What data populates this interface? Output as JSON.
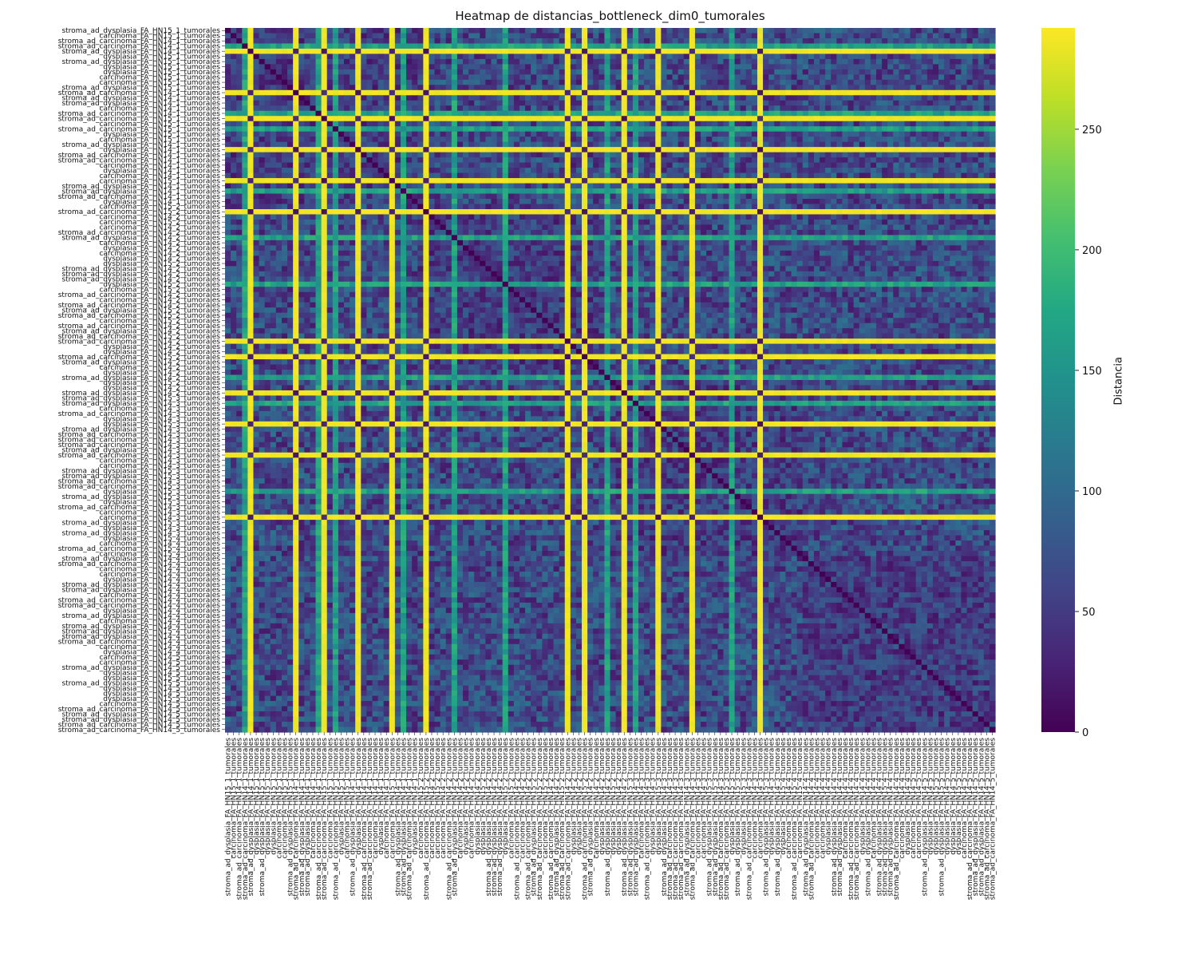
{
  "chart_data": {
    "type": "heatmap",
    "title": "Heatmap de distancias_bottleneck_dim0_tumorales",
    "colorbar": {
      "label": "Distancia",
      "range": [
        0,
        292
      ],
      "ticks": [
        0,
        50,
        100,
        150,
        200,
        250
      ],
      "colormap": "viridis"
    },
    "labels": [
      "stroma_ad_dysplasia_FA_HN15_1_tumorales",
      "carcinoma_FA_HN15_1_tumorales",
      "stroma_ad_carcinoma_FA_HN14_1_tumorales",
      "stroma_ad_carcinoma_FA_HN14_1_tumorales",
      "stroma_ad_dysplasia_FA_HN14_1_tumorales",
      "dysplasia_FA_HN15_1_tumorales",
      "stroma_ad_dysplasia_FA_HN15_1_tumorales",
      "dysplasia_FA_HN15_1_tumorales",
      "dysplasia_FA_HN15_1_tumorales",
      "carcinoma_FA_HN15_1_tumorales",
      "carcinoma_FA_HN15_1_tumorales",
      "stroma_ad_dysplasia_FA_HN15_1_tumorales",
      "stroma_ad_carcinoma_FA_HN14_1_tumorales",
      "stroma_ad_dysplasia_FA_HN14_1_tumorales",
      "stroma_ad_dysplasia_FA_HN14_1_tumorales",
      "carcinoma_FA_HN14_1_tumorales",
      "stroma_ad_carcinoma_FA_HN14_1_tumorales",
      "stroma_ad_carcinoma_FA_HN15_1_tumorales",
      "carcinoma_FA_HN15_1_tumorales",
      "stroma_ad_carcinoma_FA_HN15_1_tumorales",
      "dysplasia_FA_HN15_1_tumorales",
      "carcinoma_FA_HN15_1_tumorales",
      "stroma_ad_dysplasia_FA_HN14_1_tumorales",
      "dysplasia_FA_HN14_1_tumorales",
      "stroma_ad_carcinoma_FA_HN14_1_tumorales",
      "stroma_ad_carcinoma_FA_HN14_1_tumorales",
      "carcinoma_FA_HN14_1_tumorales",
      "dysplasia_FA_HN14_1_tumorales",
      "carcinoma_FA_HN14_1_tumorales",
      "carcinoma_FA_HN15_1_tumorales",
      "stroma_ad_dysplasia_FA_HN14_1_tumorales",
      "stroma_ad_dysplasia_FA_HN14_1_tumorales",
      "stroma_ad_carcinoma_FA_HN14_1_tumorales",
      "dysplasia_FA_HN14_1_tumorales",
      "carcinoma_FA_HN15_2_tumorales",
      "stroma_ad_carcinoma_FA_HN15_2_tumorales",
      "carcinoma_FA_HN14_2_tumorales",
      "carcinoma_FA_HN15_2_tumorales",
      "carcinoma_FA_HN14_2_tumorales",
      "stroma_ad_carcinoma_FA_HN14_2_tumorales",
      "stroma_ad_dysplasia_FA_HN14_2_tumorales",
      "carcinoma_FA_HN14_2_tumorales",
      "dysplasia_FA_HN14_2_tumorales",
      "carcinoma_FA_HN14_2_tumorales",
      "dysplasia_FA_HN14_2_tumorales",
      "dysplasia_FA_HN15_2_tumorales",
      "stroma_ad_dysplasia_FA_HN14_2_tumorales",
      "stroma_ad_dysplasia_FA_HN14_2_tumorales",
      "stroma_ad_dysplasia_FA_HN14_2_tumorales",
      "dysplasia_FA_HN15_2_tumorales",
      "carcinoma_FA_HN15_2_tumorales",
      "stroma_ad_carcinoma_FA_HN14_2_tumorales",
      "carcinoma_FA_HN14_2_tumorales",
      "stroma_ad_carcinoma_FA_HN14_2_tumorales",
      "stroma_ad_dysplasia_FA_HN15_2_tumorales",
      "stroma_ad_carcinoma_FA_HN15_2_tumorales",
      "carcinoma_FA_HN15_2_tumorales",
      "stroma_ad_carcinoma_FA_HN14_2_tumorales",
      "stroma_ad_dysplasia_FA_HN14_2_tumorales",
      "stroma_ad_carcinoma_FA_HN15_2_tumorales",
      "stroma_ad_carcinoma_FA_HN14_2_tumorales",
      "dysplasia_FA_HN14_2_tumorales",
      "dysplasia_FA_HN14_2_tumorales",
      "stroma_ad_carcinoma_FA_HN15_2_tumorales",
      "stroma_ad_dysplasia_FA_HN14_2_tumorales",
      "carcinoma_FA_HN14_2_tumorales",
      "dysplasia_FA_HN14_2_tumorales",
      "stroma_ad_dysplasia_FA_HN14_2_tumorales",
      "dysplasia_FA_HN15_2_tumorales",
      "dysplasia_FA_HN14_2_tumorales",
      "stroma_ad_dysplasia_FA_HN14_2_tumorales",
      "stroma_ad_dysplasia_FA_HN15_3_tumorales",
      "stroma_ad_dysplasia_FA_HN14_3_tumorales",
      "carcinoma_FA_HN14_3_tumorales",
      "stroma_ad_carcinoma_FA_HN14_3_tumorales",
      "dysplasia_FA_HN14_3_tumorales",
      "dysplasia_FA_HN15_3_tumorales",
      "stroma_ad_dysplasia_FA_HN14_3_tumorales",
      "stroma_ad_carcinoma_FA_HN14_3_tumorales",
      "stroma_ad_carcinoma_FA_HN14_3_tumorales",
      "stroma_ad_carcinoma_FA_HN14_3_tumorales",
      "stroma_ad_dysplasia_FA_HN14_3_tumorales",
      "stroma_ad_carcinoma_FA_HN14_3_tumorales",
      "carcinoma_FA_HN14_3_tumorales",
      "carcinoma_FA_HN14_3_tumorales",
      "stroma_ad_dysplasia_FA_HN15_3_tumorales",
      "stroma_ad_dysplasia_FA_HN15_3_tumorales",
      "stroma_ad_carcinoma_FA_HN14_3_tumorales",
      "stroma_ad_carcinoma_FA_HN15_3_tumorales",
      "dysplasia_FA_HN15_3_tumorales",
      "stroma_ad_dysplasia_FA_HN15_3_tumorales",
      "dysplasia_FA_HN15_3_tumorales",
      "stroma_ad_carcinoma_FA_HN14_3_tumorales",
      "carcinoma_FA_HN14_3_tumorales",
      "carcinoma_FA_HN14_3_tumorales",
      "stroma_ad_dysplasia_FA_HN15_3_tumorales",
      "dysplasia_FA_HN14_3_tumorales",
      "stroma_ad_dysplasia_FA_HN14_3_tumorales",
      "dysplasia_FA_HN15_4_tumorales",
      "carcinoma_FA_HN14_4_tumorales",
      "stroma_ad_carcinoma_FA_HN15_4_tumorales",
      "carcinoma_FA_HN15_4_tumorales",
      "stroma_ad_dysplasia_FA_HN14_4_tumorales",
      "stroma_ad_carcinoma_FA_HN14_4_tumorales",
      "carcinoma_FA_HN14_4_tumorales",
      "carcinoma_FA_HN14_4_tumorales",
      "dysplasia_FA_HN14_4_tumorales",
      "stroma_ad_dysplasia_FA_HN14_4_tumorales",
      "stroma_ad_dysplasia_FA_HN14_4_tumorales",
      "carcinoma_FA_HN14_4_tumorales",
      "stroma_ad_carcinoma_FA_HN14_4_tumorales",
      "stroma_ad_carcinoma_FA_HN14_4_tumorales",
      "dysplasia_FA_HN14_4_tumorales",
      "stroma_ad_dysplasia_FA_HN14_4_tumorales",
      "carcinoma_FA_HN14_4_tumorales",
      "stroma_ad_dysplasia_FA_HN14_4_tumorales",
      "stroma_ad_dysplasia_FA_HN15_4_tumorales",
      "stroma_ad_dysplasia_FA_HN14_4_tumorales",
      "stroma_ad_carcinoma_FA_HN14_4_tumorales",
      "carcinoma_FA_HN14_4_tumorales",
      "dysplasia_FA_HN14_4_tumorales",
      "carcinoma_FA_HN14_5_tumorales",
      "carcinoma_FA_HN14_5_tumorales",
      "stroma_ad_dysplasia_FA_HN14_5_tumorales",
      "dysplasia_FA_HN14_5_tumorales",
      "dysplasia_FA_HN15_5_tumorales",
      "stroma_ad_dysplasia_FA_HN15_5_tumorales",
      "dysplasia_FA_HN14_5_tumorales",
      "dysplasia_FA_HN14_5_tumorales",
      "dysplasia_FA_HN15_5_tumorales",
      "carcinoma_FA_HN14_5_tumorales",
      "stroma_ad_carcinoma_FA_HN14_5_tumorales",
      "stroma_ad_dysplasia_FA_HN14_5_tumorales",
      "stroma_ad_dysplasia_FA_HN14_5_tumorales",
      "stroma_ad_carcinoma_FA_HN14_5_tumorales",
      "stroma_ad_carcinoma_FA_HN14_5_tumorales"
    ],
    "high_distance_indices": [
      4,
      12,
      17,
      23,
      29,
      35,
      60,
      63,
      70,
      76,
      82,
      94
    ],
    "high_distance_value": 290,
    "medium_distance_indices": [
      3,
      16,
      19,
      31,
      40,
      49,
      67,
      72,
      89
    ],
    "medium_distance_value": 210,
    "diagonal_value": 0,
    "base_range": [
      20,
      110
    ]
  }
}
